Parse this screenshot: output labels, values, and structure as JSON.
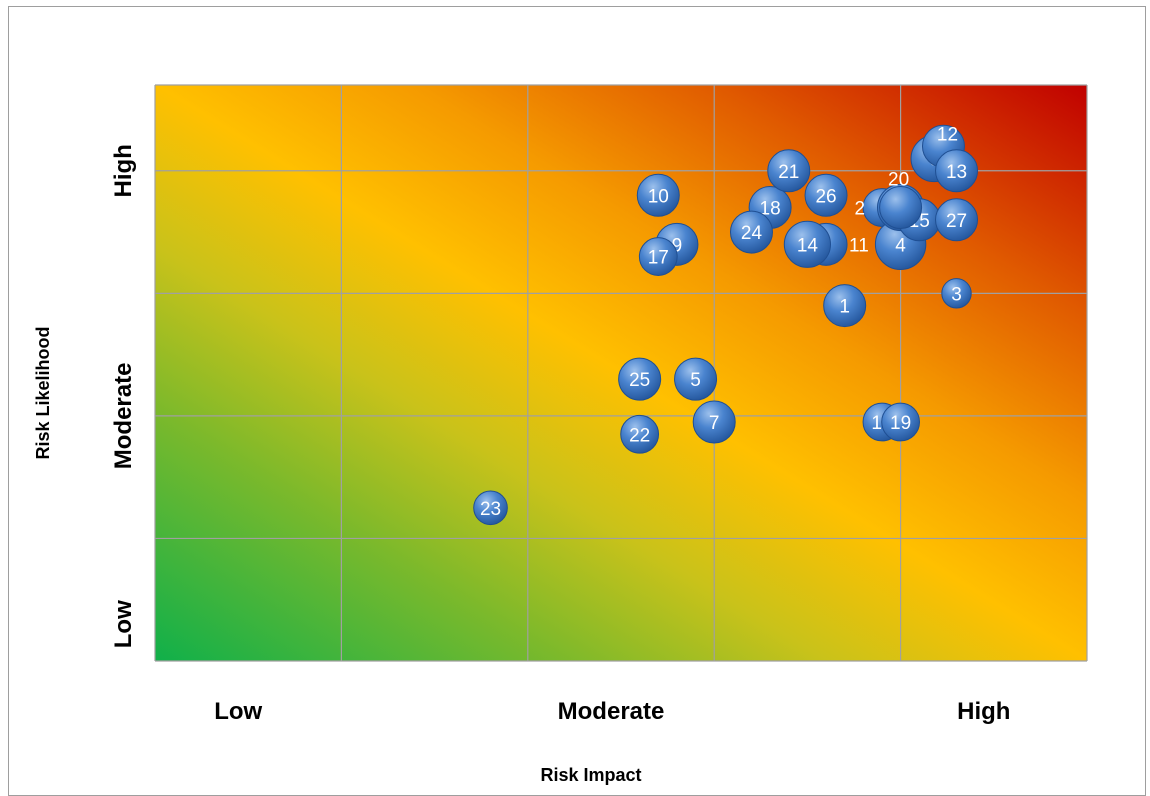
{
  "chart_data": {
    "type": "scatter",
    "title": "",
    "xlabel": "Risk Impact",
    "ylabel": "Risk Likelihood",
    "xlim": [
      0,
      5
    ],
    "ylim": [
      0,
      4.7
    ],
    "x_ticks": [
      {
        "value": 0.5,
        "label": "Low"
      },
      {
        "value": 2.5,
        "label": "Moderate"
      },
      {
        "value": 4.5,
        "label": "High"
      }
    ],
    "y_ticks": [
      {
        "value": 0.3,
        "label": "Low"
      },
      {
        "value": 2.0,
        "label": "Moderate"
      },
      {
        "value": 4.0,
        "label": "High"
      }
    ],
    "grid": true,
    "background": "heat gradient from green (low impact / low likelihood) through yellow and orange to red (high impact / high likelihood)",
    "colors": {
      "bubble": "#3f78c4",
      "bubble_edge": "#1f4f93",
      "grid": "#a0a0a0",
      "low": "#10b04a",
      "mid": "#ffc000",
      "high": "#c00000"
    },
    "points": [
      {
        "id": "1",
        "x": 3.7,
        "y": 2.9,
        "size": 1.0
      },
      {
        "id": "2",
        "x": 3.9,
        "y": 3.7,
        "size": 0.9,
        "label_pos": "left"
      },
      {
        "id": "3",
        "x": 4.3,
        "y": 3.0,
        "size": 0.7
      },
      {
        "id": "4",
        "x": 4.0,
        "y": 3.4,
        "size": 1.2
      },
      {
        "id": "5",
        "x": 2.9,
        "y": 2.3,
        "size": 1.0
      },
      {
        "id": "6",
        "x": 4.18,
        "y": 4.1,
        "size": 1.1
      },
      {
        "id": "7",
        "x": 3.0,
        "y": 1.95,
        "size": 1.0
      },
      {
        "id": "8",
        "x": 4.0,
        "y": 3.7,
        "size": 1.1
      },
      {
        "id": "9",
        "x": 2.8,
        "y": 3.4,
        "size": 1.0
      },
      {
        "id": "10",
        "x": 2.7,
        "y": 3.8,
        "size": 1.0
      },
      {
        "id": "11",
        "x": 3.6,
        "y": 3.4,
        "size": 1.0,
        "label_pos": "right"
      },
      {
        "id": "12",
        "x": 4.23,
        "y": 4.2,
        "size": 1.0,
        "label_pos": "above"
      },
      {
        "id": "13",
        "x": 4.3,
        "y": 4.0,
        "size": 1.0
      },
      {
        "id": "14",
        "x": 3.5,
        "y": 3.4,
        "size": 1.1
      },
      {
        "id": "15",
        "x": 4.1,
        "y": 3.6,
        "size": 1.0
      },
      {
        "id": "16",
        "x": 3.9,
        "y": 1.95,
        "size": 0.9
      },
      {
        "id": "17",
        "x": 2.7,
        "y": 3.3,
        "size": 0.9
      },
      {
        "id": "18",
        "x": 3.3,
        "y": 3.7,
        "size": 1.0
      },
      {
        "id": "19",
        "x": 4.0,
        "y": 1.95,
        "size": 0.9
      },
      {
        "id": "20",
        "x": 4.0,
        "y": 3.7,
        "size": 1.0,
        "label_pos": "above-left"
      },
      {
        "id": "21",
        "x": 3.4,
        "y": 4.0,
        "size": 1.0
      },
      {
        "id": "22",
        "x": 2.6,
        "y": 1.85,
        "size": 0.9
      },
      {
        "id": "23",
        "x": 1.8,
        "y": 1.25,
        "size": 0.8
      },
      {
        "id": "24",
        "x": 3.2,
        "y": 3.5,
        "size": 1.0
      },
      {
        "id": "25",
        "x": 2.6,
        "y": 2.3,
        "size": 1.0
      },
      {
        "id": "26",
        "x": 3.6,
        "y": 3.8,
        "size": 1.0
      },
      {
        "id": "27",
        "x": 4.3,
        "y": 3.6,
        "size": 1.0
      }
    ]
  }
}
